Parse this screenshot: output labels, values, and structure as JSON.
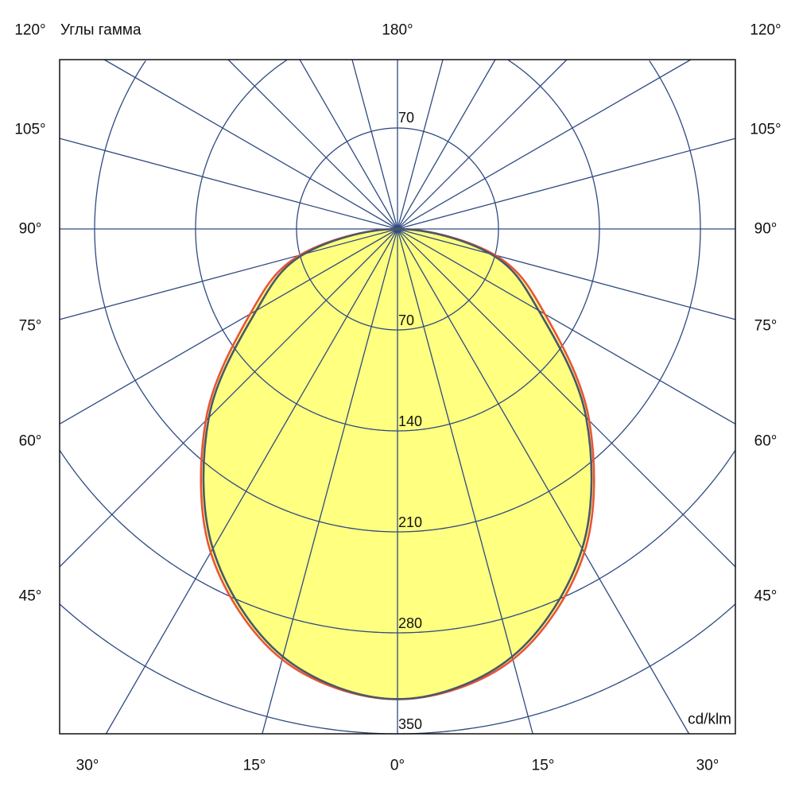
{
  "chart_data": {
    "type": "polar",
    "title": "Углы гамма",
    "unit_label": "cd/klm",
    "radial_ticks": [
      70,
      140,
      210,
      280,
      350
    ],
    "radial_grid_max": 420,
    "angular_grid_step_deg": 15,
    "grid": true,
    "angle_labels": {
      "top": [
        "120°",
        "180°",
        "120°"
      ],
      "left": [
        "105°",
        "90°",
        "75°",
        "60°",
        "45°"
      ],
      "right": [
        "105°",
        "90°",
        "75°",
        "60°",
        "45°"
      ],
      "bottom": [
        "30°",
        "15°",
        "0°",
        "15°",
        "30°"
      ]
    },
    "gamma_deg": [
      0,
      15,
      30,
      45,
      60,
      75,
      90
    ],
    "series": [
      {
        "values": [
          326,
          309,
          259,
          188,
          118,
          70,
          0
        ],
        "color": "#e8543c"
      },
      {
        "values": [
          326,
          307,
          256,
          185,
          113,
          67,
          0
        ],
        "color": "#4a5868"
      }
    ],
    "fill_color": "#ffff80",
    "grid_color": "#2e4a82"
  }
}
